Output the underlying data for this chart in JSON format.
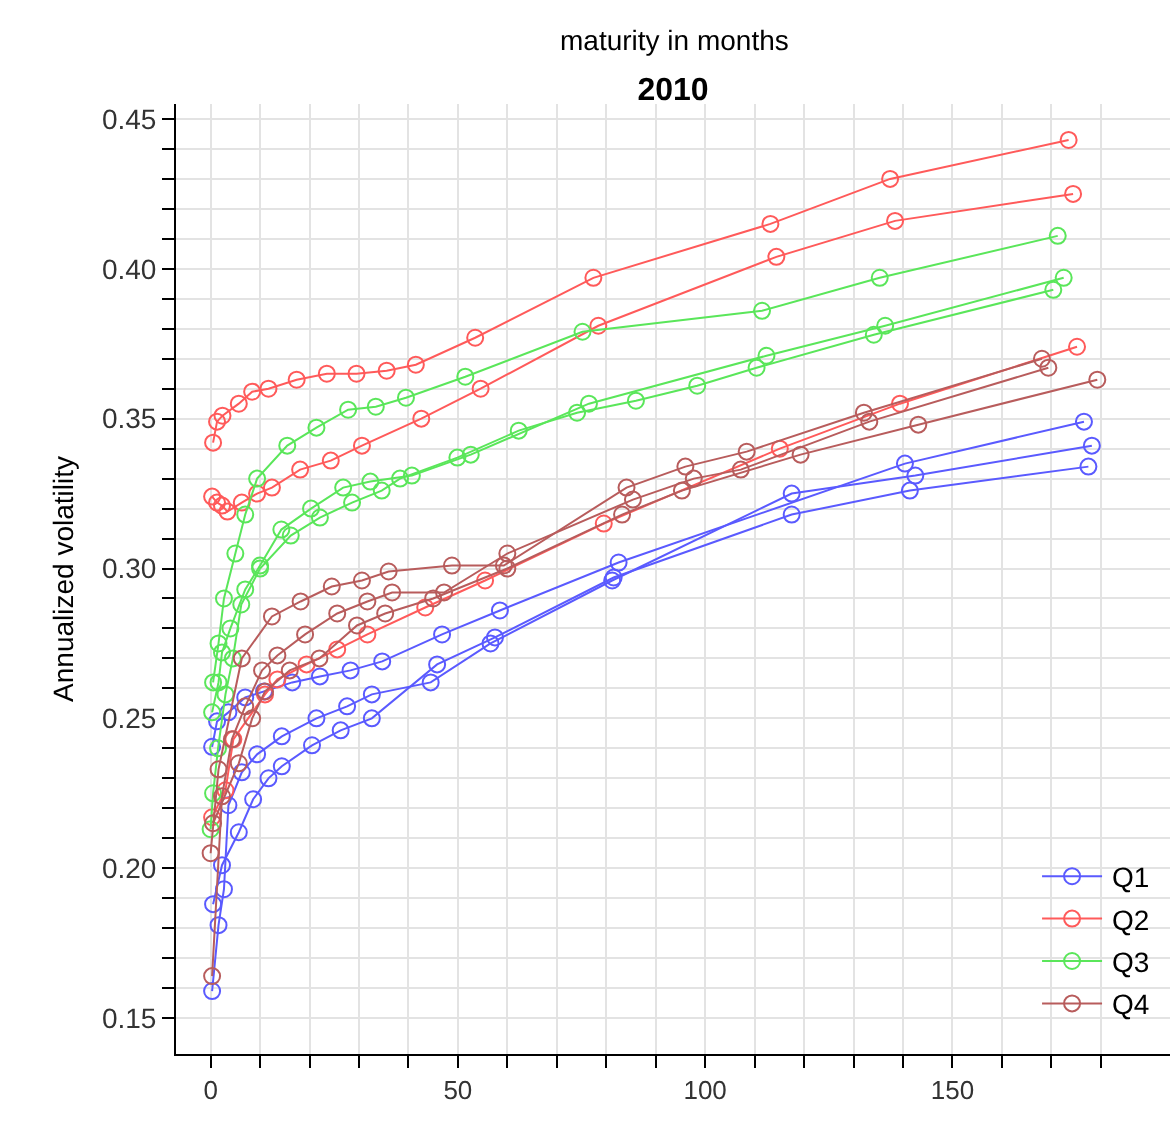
{
  "chart_data": {
    "type": "line",
    "title": "2010",
    "xlabel": "maturity in months",
    "ylabel": "Annualized volatility",
    "marker": "circle",
    "line_style": "solid",
    "grid": true,
    "legend": "bottom right",
    "xlim": [
      -7,
      194
    ],
    "ylim": [
      0.138,
      0.455
    ],
    "xticks": [
      {
        "value": 0,
        "label": "0"
      },
      {
        "value": 10,
        "label": null
      },
      {
        "value": 20,
        "label": null
      },
      {
        "value": 30,
        "label": null
      },
      {
        "value": 40,
        "label": null
      },
      {
        "value": 50,
        "label": "50"
      },
      {
        "value": 60,
        "label": null
      },
      {
        "value": 70,
        "label": null
      },
      {
        "value": 80,
        "label": null
      },
      {
        "value": 90,
        "label": null
      },
      {
        "value": 100,
        "label": "100"
      },
      {
        "value": 110,
        "label": null
      },
      {
        "value": 120,
        "label": null
      },
      {
        "value": 130,
        "label": null
      },
      {
        "value": 140,
        "label": null
      },
      {
        "value": 150,
        "label": "150"
      },
      {
        "value": 160,
        "label": null
      },
      {
        "value": 170,
        "label": null
      },
      {
        "value": 180,
        "label": null
      }
    ],
    "yticks": [
      {
        "value": 0.15,
        "label": "0.15"
      },
      {
        "value": 0.16,
        "label": null
      },
      {
        "value": 0.17,
        "label": null
      },
      {
        "value": 0.18,
        "label": null
      },
      {
        "value": 0.19,
        "label": null
      },
      {
        "value": 0.2,
        "label": "0.20"
      },
      {
        "value": 0.21,
        "label": null
      },
      {
        "value": 0.22,
        "label": null
      },
      {
        "value": 0.23,
        "label": null
      },
      {
        "value": 0.24,
        "label": null
      },
      {
        "value": 0.25,
        "label": "0.25"
      },
      {
        "value": 0.26,
        "label": null
      },
      {
        "value": 0.27,
        "label": null
      },
      {
        "value": 0.28,
        "label": null
      },
      {
        "value": 0.29,
        "label": null
      },
      {
        "value": 0.3,
        "label": "0.30"
      },
      {
        "value": 0.31,
        "label": null
      },
      {
        "value": 0.32,
        "label": null
      },
      {
        "value": 0.33,
        "label": null
      },
      {
        "value": 0.34,
        "label": null
      },
      {
        "value": 0.35,
        "label": "0.35"
      },
      {
        "value": 0.36,
        "label": null
      },
      {
        "value": 0.37,
        "label": null
      },
      {
        "value": 0.38,
        "label": null
      },
      {
        "value": 0.39,
        "label": null
      },
      {
        "value": 0.4,
        "label": "0.40"
      },
      {
        "value": 0.41,
        "label": null
      },
      {
        "value": 0.42,
        "label": null
      },
      {
        "value": 0.43,
        "label": null
      },
      {
        "value": 0.44,
        "label": null
      },
      {
        "value": 0.45,
        "label": "0.45"
      }
    ],
    "series": [
      {
        "name": "Q1",
        "color": "#5a5aff",
        "x": [
          0.3,
          1.3,
          3.6,
          7,
          10.8,
          16.5,
          22.1,
          28.3,
          34.7,
          46.8,
          58.5,
          82.5,
          140.4,
          176.6
        ],
        "values": [
          0.2405,
          0.249,
          0.252,
          0.257,
          0.259,
          0.262,
          0.264,
          0.266,
          0.269,
          0.278,
          0.286,
          0.302,
          0.335,
          0.349
        ]
      },
      {
        "color": "#5a5aff",
        "x": [
          0.3,
          1.6,
          2.7,
          3.6,
          6.3,
          9.4,
          14.4,
          21.4,
          27.6,
          32.6,
          44.5,
          56.6,
          81.2,
          117.5,
          142.5,
          178.2
        ],
        "values": [
          0.159,
          0.181,
          0.193,
          0.221,
          0.232,
          0.238,
          0.244,
          0.25,
          0.254,
          0.258,
          0.262,
          0.275,
          0.296,
          0.325,
          0.331,
          0.341
        ]
      },
      {
        "color": "#5a5aff",
        "x": [
          0.5,
          2.3,
          5.7,
          8.6,
          11.7,
          14.4,
          20.5,
          26.3,
          32.6,
          45.8,
          57.5,
          81.5,
          117.5,
          141.4,
          177.5
        ],
        "values": [
          0.188,
          0.201,
          0.212,
          0.223,
          0.23,
          0.234,
          0.241,
          0.246,
          0.25,
          0.268,
          0.277,
          0.297,
          0.318,
          0.326,
          0.334
        ]
      },
      {
        "name": "Q2",
        "color": "#ff5a5a",
        "x": [
          0.5,
          1.3,
          2.4,
          5.7,
          8.4,
          11.7,
          17.4,
          23.5,
          29.5,
          35.6,
          41.5,
          53.5,
          77.4,
          113.2,
          137.4,
          173.5
        ],
        "values": [
          0.342,
          0.349,
          0.351,
          0.355,
          0.359,
          0.36,
          0.363,
          0.365,
          0.365,
          0.366,
          0.368,
          0.377,
          0.397,
          0.415,
          0.43,
          0.443
        ]
      },
      {
        "color": "#ff5a5a",
        "x": [
          0.3,
          1.3,
          2.3,
          3.4,
          6.3,
          9.4,
          12.4,
          18.1,
          24.3,
          30.6,
          42.6,
          54.6,
          78.4,
          114.4,
          138.4,
          174.4
        ],
        "values": [
          0.324,
          0.322,
          0.321,
          0.319,
          0.322,
          0.325,
          0.327,
          0.333,
          0.336,
          0.341,
          0.35,
          0.36,
          0.381,
          0.404,
          0.416,
          0.425
        ]
      },
      {
        "color": "#ff5a5a",
        "x": [
          0.3,
          3,
          4.6,
          11,
          13.5,
          19.4,
          25.6,
          31.7,
          43.4,
          55.5,
          79.5,
          115.1,
          139.4,
          175.2
        ],
        "values": [
          0.217,
          0.226,
          0.243,
          0.258,
          0.263,
          0.268,
          0.273,
          0.278,
          0.287,
          0.296,
          0.315,
          0.34,
          0.355,
          0.374
        ]
      },
      {
        "name": "Q3",
        "color": "#5ae65a",
        "x": [
          0.5,
          1.6,
          2.7,
          5,
          7,
          9.4,
          15.5,
          21.4,
          27.8,
          33.4,
          39.5,
          51.5,
          75.2,
          111.5,
          135.3,
          171.3
        ],
        "values": [
          0.262,
          0.275,
          0.29,
          0.305,
          0.318,
          0.33,
          0.341,
          0.347,
          0.353,
          0.354,
          0.357,
          0.364,
          0.379,
          0.386,
          0.397,
          0.411
        ]
      },
      {
        "color": "#5ae65a",
        "x": [
          0.3,
          1.6,
          2.3,
          4,
          7,
          10,
          14.3,
          20.3,
          26.8,
          32.3,
          40.7,
          52.6,
          76.5,
          112.4,
          136.4,
          172.5
        ],
        "values": [
          0.252,
          0.262,
          0.272,
          0.28,
          0.293,
          0.301,
          0.313,
          0.32,
          0.327,
          0.329,
          0.331,
          0.338,
          0.355,
          0.371,
          0.381,
          0.397
        ]
      },
      {
        "color": "#5ae65a",
        "x": [
          0,
          0.5,
          1.5,
          3,
          4.5,
          6.2,
          10,
          16.2,
          22.1,
          28.6,
          34.6,
          38.3,
          49.9,
          62.3,
          74.1,
          86,
          98.4,
          110.4,
          134.1,
          170.4
        ],
        "values": [
          0.213,
          0.225,
          0.24,
          0.258,
          0.27,
          0.288,
          0.3,
          0.311,
          0.317,
          0.322,
          0.326,
          0.33,
          0.337,
          0.346,
          0.352,
          0.356,
          0.361,
          0.367,
          0.378,
          0.393
        ]
      },
      {
        "name": "Q4",
        "color": "#b85c5c",
        "x": [
          0,
          1.6,
          6.3,
          12.4,
          18.2,
          24.5,
          30.6,
          36,
          48.8,
          59.3,
          84.1,
          96,
          108.4,
          132.1,
          168.1
        ],
        "values": [
          0.205,
          0.233,
          0.27,
          0.284,
          0.289,
          0.294,
          0.296,
          0.299,
          0.301,
          0.301,
          0.327,
          0.334,
          0.339,
          0.352,
          0.37
        ]
      },
      {
        "color": "#b85c5c",
        "x": [
          0.3,
          2.3,
          4.3,
          7,
          10.4,
          13.5,
          19.1,
          25.6,
          31.7,
          36.7,
          47.2,
          60,
          85.4,
          97.7,
          107.2,
          133.2,
          169.4
        ],
        "values": [
          0.164,
          0.224,
          0.243,
          0.254,
          0.266,
          0.271,
          0.278,
          0.285,
          0.289,
          0.292,
          0.292,
          0.305,
          0.323,
          0.33,
          0.333,
          0.349,
          0.367
        ]
      },
      {
        "color": "#b85c5c",
        "x": [
          0.5,
          5.7,
          8.4,
          11,
          16,
          22,
          29.6,
          35.3,
          45,
          60,
          83.2,
          95.3,
          119.3,
          143.1,
          179.3
        ],
        "values": [
          0.215,
          0.235,
          0.25,
          0.259,
          0.266,
          0.27,
          0.281,
          0.285,
          0.29,
          0.3,
          0.318,
          0.326,
          0.338,
          0.348,
          0.363
        ]
      }
    ]
  }
}
